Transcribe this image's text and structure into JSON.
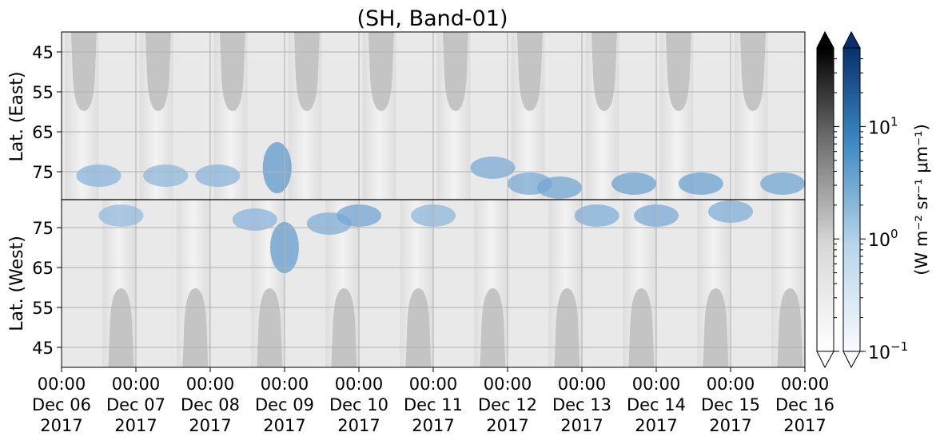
{
  "chart_data": {
    "type": "heatmap",
    "title": "(SH, Band-01)",
    "ylabel_top": "Lat. (East)",
    "ylabel_bottom": "Lat. (West)",
    "y_ticks_east": [
      "45",
      "55",
      "65",
      "75"
    ],
    "y_ticks_west": [
      "75",
      "65",
      "55",
      "45"
    ],
    "x_ticks": [
      {
        "time": "00:00",
        "date": "Dec 06",
        "year": "2017"
      },
      {
        "time": "00:00",
        "date": "Dec 07",
        "year": "2017"
      },
      {
        "time": "00:00",
        "date": "Dec 08",
        "year": "2017"
      },
      {
        "time": "00:00",
        "date": "Dec 09",
        "year": "2017"
      },
      {
        "time": "00:00",
        "date": "Dec 10",
        "year": "2017"
      },
      {
        "time": "00:00",
        "date": "Dec 11",
        "year": "2017"
      },
      {
        "time": "00:00",
        "date": "Dec 12",
        "year": "2017"
      },
      {
        "time": "00:00",
        "date": "Dec 13",
        "year": "2017"
      },
      {
        "time": "00:00",
        "date": "Dec 14",
        "year": "2017"
      },
      {
        "time": "00:00",
        "date": "Dec 15",
        "year": "2017"
      },
      {
        "time": "00:00",
        "date": "Dec 16",
        "year": "2017"
      }
    ],
    "x_range": [
      "2017-12-06 00:00",
      "2017-12-16 00:00"
    ],
    "grid": true,
    "colorbar": {
      "scale": "log",
      "range": [
        0.1,
        50
      ],
      "ticks": [
        {
          "value": 0.1,
          "base": "10",
          "exp": "−1"
        },
        {
          "value": 1,
          "base": "10",
          "exp": "0"
        },
        {
          "value": 10,
          "base": "10",
          "exp": "1"
        }
      ],
      "label": "(W m⁻² sr⁻¹ μm⁻¹)",
      "colormaps": [
        "Greys",
        "Blues"
      ]
    },
    "night_mask_east_centers_day": [
      0.3,
      1.3,
      2.3,
      3.3,
      4.3,
      5.3,
      6.3,
      7.3,
      8.3,
      9.3
    ],
    "night_mask_west_centers_day": [
      0.8,
      1.8,
      2.8,
      3.8,
      4.8,
      5.8,
      6.8,
      7.8,
      8.8,
      9.8
    ],
    "aurora_features": [
      {
        "day": 0.5,
        "lat_east": 76,
        "value": 1.5
      },
      {
        "day": 0.8,
        "lat_west": 78,
        "value": 1.0
      },
      {
        "day": 1.4,
        "lat_east": 76,
        "value": 1.2
      },
      {
        "day": 2.1,
        "lat_east": 76,
        "value": 1.5
      },
      {
        "day": 2.6,
        "lat_west": 77,
        "value": 1.5
      },
      {
        "day": 2.9,
        "lat_east": 74,
        "value": 6.0
      },
      {
        "day": 3.0,
        "lat_west": 70,
        "value": 5.0
      },
      {
        "day": 3.6,
        "lat_west": 76,
        "value": 2.0
      },
      {
        "day": 4.0,
        "lat_west": 78,
        "value": 3.0
      },
      {
        "day": 5.0,
        "lat_west": 78,
        "value": 1.2
      },
      {
        "day": 5.8,
        "lat_east": 74,
        "value": 2.5
      },
      {
        "day": 6.3,
        "lat_east": 78,
        "value": 2.5
      },
      {
        "day": 6.7,
        "lat_east": 79,
        "value": 3.0
      },
      {
        "day": 7.2,
        "lat_west": 78,
        "value": 2.0
      },
      {
        "day": 7.7,
        "lat_east": 78,
        "value": 4.0
      },
      {
        "day": 8.0,
        "lat_west": 78,
        "value": 2.5
      },
      {
        "day": 8.6,
        "lat_east": 78,
        "value": 4.0
      },
      {
        "day": 9.0,
        "lat_west": 79,
        "value": 2.0
      },
      {
        "day": 9.7,
        "lat_east": 78,
        "value": 3.0
      }
    ]
  }
}
